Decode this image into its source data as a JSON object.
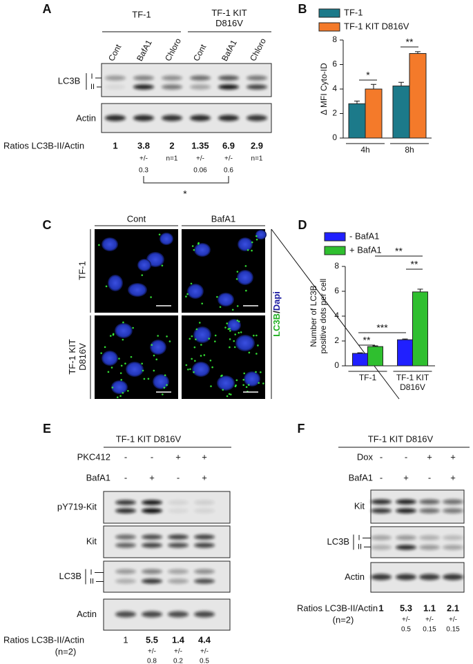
{
  "chart_data": [
    {
      "type": "bar",
      "panel_label": "B",
      "categories": [
        "4h",
        "8h"
      ],
      "series": [
        {
          "name": "TF-1",
          "color": "#1c7a8a",
          "values": [
            2.8,
            4.25
          ],
          "errors": [
            0.22,
            0.3
          ]
        },
        {
          "name": "TF-1 KIT D816V",
          "color": "#f47a2a",
          "values": [
            4.0,
            6.9
          ],
          "errors": [
            0.38,
            0.15
          ]
        }
      ],
      "y_label": "Δ MFI Cyto-ID",
      "ylim": [
        0,
        8
      ],
      "yticks": [
        0,
        2,
        4,
        6,
        8
      ],
      "annotations": [
        "*",
        "**"
      ]
    },
    {
      "type": "bar",
      "panel_label": "D",
      "categories": [
        "TF-1",
        "TF-1 KIT D816V"
      ],
      "series": [
        {
          "name": "- BafA1",
          "color": "#2020ff",
          "values": [
            1.0,
            2.1
          ],
          "errors": [
            0.05,
            0.06
          ]
        },
        {
          "name": "+ BafA1",
          "color": "#2fbf2f",
          "values": [
            1.55,
            5.95
          ],
          "errors": [
            0.06,
            0.22
          ]
        }
      ],
      "y_label": "Number of LC3B positive dots per cell",
      "ylim": [
        0,
        8
      ],
      "yticks": [
        0,
        2,
        4,
        6,
        8
      ],
      "annotations": [
        "**",
        "***",
        "**",
        "**"
      ]
    }
  ],
  "panel_a": {
    "label": "A",
    "groups": [
      "TF-1",
      "TF-1 KIT D816V"
    ],
    "lanes": [
      "Cont",
      "BafA1",
      "Chloro",
      "Cont",
      "BafA1",
      "Chloro"
    ],
    "blots": [
      "LC3B",
      "Actin"
    ],
    "bands": [
      "I",
      "II"
    ],
    "ratio_label": "Ratios LC3B-II/Actin",
    "ratios": [
      "1",
      "3.8",
      "2",
      "1.35",
      "6.9",
      "2.9"
    ],
    "ratio_notes": [
      null,
      [
        "+/-",
        "0.3"
      ],
      [
        "n=1"
      ],
      [
        "+/-",
        "0.06"
      ],
      [
        "+/-",
        "0.6"
      ],
      [
        "n=1"
      ]
    ],
    "significance": "*"
  },
  "panel_c": {
    "label": "C",
    "columns": [
      "Cont",
      "BafA1"
    ],
    "rows": [
      "TF-1",
      "TF-1 KIT D816V"
    ],
    "stain": [
      "LC3B",
      "/",
      "Dapi"
    ]
  },
  "panel_e": {
    "label": "E",
    "title": "TF-1 KIT D816V",
    "conditions": [
      {
        "name": "PKC412",
        "signs": [
          "-",
          "-",
          "+",
          "+"
        ]
      },
      {
        "name": "BafA1",
        "signs": [
          "-",
          "+",
          "-",
          "+"
        ]
      }
    ],
    "blots": [
      "pY719-Kit",
      "Kit",
      "LC3B",
      "Actin"
    ],
    "bands": [
      "I",
      "II"
    ],
    "ratio_label": "Ratios LC3B-II/Actin",
    "ratio_n": "(n=2)",
    "ratios": [
      "1",
      "5.5",
      "1.4",
      "4.4"
    ],
    "ratio_notes": [
      null,
      [
        "+/-",
        "0.8"
      ],
      [
        "+/-",
        "0.2"
      ],
      [
        "+/-",
        "0.5"
      ]
    ]
  },
  "panel_f": {
    "label": "F",
    "title": "TF-1 KIT D816V",
    "conditions": [
      {
        "name": "Dox",
        "signs": [
          "-",
          "-",
          "+",
          "+"
        ]
      },
      {
        "name": "BafA1",
        "signs": [
          "-",
          "+",
          "-",
          "+"
        ]
      }
    ],
    "blots": [
      "Kit",
      "LC3B",
      "Actin"
    ],
    "bands": [
      "I",
      "II"
    ],
    "ratio_label": "Ratios LC3B-II/Actin",
    "ratio_n": "(n=2)",
    "ratios": [
      "1",
      "5.3",
      "1.1",
      "2.1"
    ],
    "ratio_notes": [
      null,
      [
        "+/-",
        "0.5"
      ],
      [
        "+/-",
        "0.15"
      ],
      [
        "+/-",
        "0.15"
      ]
    ]
  }
}
